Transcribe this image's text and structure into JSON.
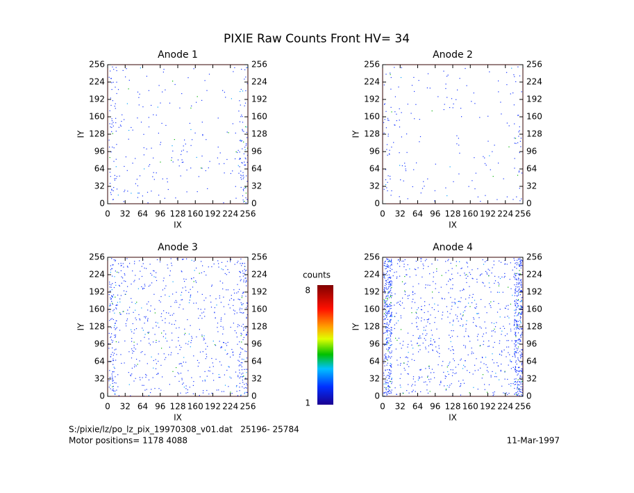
{
  "title": "PIXIE Raw Counts Front HV= 34",
  "chart_data": [
    {
      "type": "image",
      "title": "Anode 1",
      "xlabel": "IX",
      "ylabel": "IY",
      "xlim": [
        0,
        256
      ],
      "ylim": [
        0,
        256
      ],
      "xticks": [
        0,
        32,
        64,
        96,
        128,
        160,
        192,
        224,
        256
      ],
      "yticks": [
        0,
        32,
        64,
        96,
        128,
        160,
        192,
        224,
        256
      ]
    },
    {
      "type": "image",
      "title": "Anode 2",
      "xlabel": "IX",
      "ylabel": "IY",
      "xlim": [
        0,
        256
      ],
      "ylim": [
        0,
        256
      ],
      "xticks": [
        0,
        32,
        64,
        96,
        128,
        160,
        192,
        224,
        256
      ],
      "yticks": [
        0,
        32,
        64,
        96,
        128,
        160,
        192,
        224,
        256
      ]
    },
    {
      "type": "image",
      "title": "Anode 3",
      "xlabel": "IX",
      "ylabel": "IY",
      "xlim": [
        0,
        256
      ],
      "ylim": [
        0,
        256
      ],
      "xticks": [
        0,
        32,
        64,
        96,
        128,
        160,
        192,
        224,
        256
      ],
      "yticks": [
        0,
        32,
        64,
        96,
        128,
        160,
        192,
        224,
        256
      ]
    },
    {
      "type": "image",
      "title": "Anode 4",
      "xlabel": "IX",
      "ylabel": "IY",
      "xlim": [
        0,
        256
      ],
      "ylim": [
        0,
        256
      ],
      "xticks": [
        0,
        32,
        64,
        96,
        128,
        160,
        192,
        224,
        256
      ],
      "yticks": [
        0,
        32,
        64,
        96,
        128,
        160,
        192,
        224,
        256
      ]
    }
  ],
  "colorbar": {
    "label": "counts",
    "lim": [
      1,
      8
    ],
    "ticks": [
      1,
      8
    ]
  },
  "footer": {
    "file": "S:/pixie/lz/po_lz_pix_19970308_v01.dat   25196- 25784",
    "motor": "Motor positions= 1178 4088",
    "date": "11-Mar-1997"
  }
}
